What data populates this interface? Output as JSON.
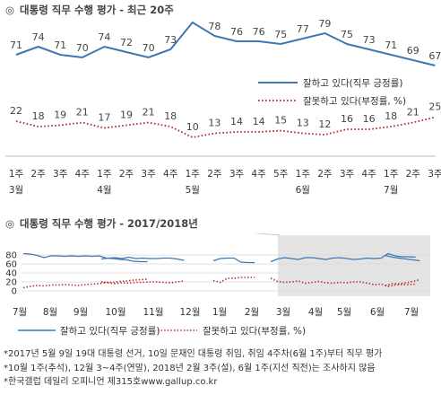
{
  "chart1_title": "대통령 직무 수행 평가 - 최근 20주",
  "chart2_title": "대통령 직무 수행 평가 - 2017/2018년",
  "title_mark": "◎",
  "colors": {
    "positive": "#3c78b4",
    "negative": "#b8252b",
    "shade": "#e4e4e4",
    "axis": "#999999"
  },
  "chart_data": [
    {
      "type": "line",
      "title": "대통령 직무 수행 평가 - 최근 20주",
      "x": [
        "1주|3월",
        "2주",
        "3주",
        "4주",
        "1주|4월",
        "2주",
        "3주",
        "4주",
        "1주|5월",
        "2주",
        "3주",
        "4주",
        "5주",
        "1주|6월",
        "2주",
        "3주",
        "4주",
        "1주|7월",
        "2주",
        "3주"
      ],
      "series": [
        {
          "name": "잘하고 있다(직무 긍정률)",
          "style": "solid",
          "values": [
            71,
            74,
            71,
            70,
            74,
            72,
            70,
            73,
            83,
            78,
            76,
            76,
            75,
            77,
            79,
            75,
            73,
            71,
            69,
            67
          ]
        },
        {
          "name": "잘못하고 있다(부정률, %)",
          "style": "dotted",
          "values": [
            22,
            18,
            19,
            21,
            17,
            19,
            21,
            18,
            10,
            13,
            14,
            14,
            15,
            13,
            12,
            16,
            16,
            18,
            21,
            25
          ]
        }
      ],
      "legend_position": "right"
    },
    {
      "type": "line",
      "title": "대통령 직무 수행 평가 - 2017/2018년",
      "yticks": [
        0,
        20,
        40,
        60,
        80
      ],
      "ylim": [
        0,
        90
      ],
      "months": [
        "7월",
        "8월",
        "9월",
        "10월",
        "11월",
        "12월",
        "1월",
        "2월",
        "3월",
        "4월",
        "5월",
        "6월",
        "7월"
      ],
      "shaded_range": "3월-7월",
      "series": [
        {
          "name": "잘하고 있다(직무 긍정률)",
          "style": "solid",
          "segments": [
            [
              83,
              82,
              79,
              74,
              78,
              78,
              77,
              78,
              77,
              78,
              77,
              78,
              73,
              72,
              70,
              69,
              66,
              65,
              65
            ],
            [
              71,
              73,
              74,
              72,
              75,
              72,
              73,
              72,
              72,
              73,
              73,
              71,
              68
            ],
            [
              67,
              72,
              73,
              73,
              64,
              63,
              63
            ],
            [
              65,
              71,
              74,
              72,
              70,
              74,
              74,
              72,
              70,
              73,
              74,
              72,
              70,
              71,
              73,
              72,
              73,
              83,
              78,
              76,
              76,
              75
            ],
            [
              79,
              75,
              73,
              71,
              69,
              67
            ]
          ]
        },
        {
          "name": "잘못하고 있다(부정률, %)",
          "style": "dotted",
          "segments": [
            [
              7,
              10,
              12,
              11,
              13,
              13,
              14,
              13,
              12,
              14,
              15,
              16,
              19,
              19,
              21,
              22,
              24,
              25,
              26
            ],
            [
              20,
              18,
              16,
              18,
              17,
              19,
              19,
              20,
              20,
              19,
              18,
              20,
              22
            ],
            [
              23,
              19,
              28,
              28,
              30,
              30,
              30
            ],
            [
              28,
              21,
              19,
              20,
              22,
              17,
              19,
              21,
              18,
              17,
              19,
              18,
              20,
              20,
              17,
              14,
              15,
              10,
              13,
              14,
              14,
              15
            ],
            [
              12,
              16,
              16,
              18,
              21,
              25
            ]
          ]
        }
      ]
    }
  ],
  "legend": {
    "positive_label": "잘하고 있다(직무 긍정률)",
    "negative_label": "잘못하고 있다(부정률, %)"
  },
  "footnotes": [
    "*2017년 5월 9일 19대 대통령 선거, 10일 문재인 대통령 취임, 취임 4주차(6월 1주)부터 직무 평가",
    "*10월 1주(추석), 12월 3~4주(연말), 2018년 2월 3주(설), 6월 1주(지선 직전)는 조사하지 않음",
    "*한국갤럽 데일리 오피니언 제315호www.gallup.co.kr"
  ]
}
